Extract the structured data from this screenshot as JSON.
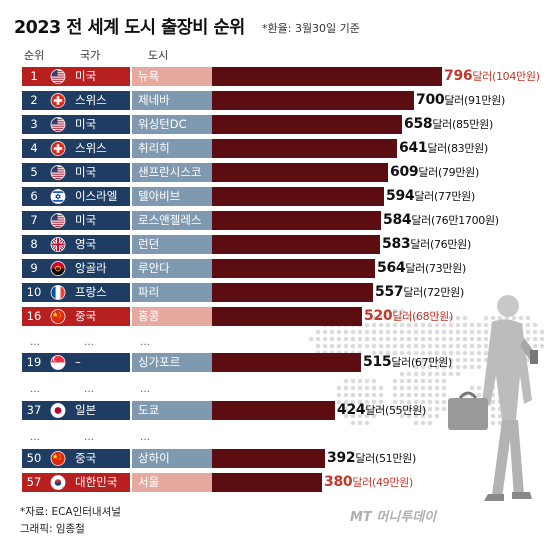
{
  "header": {
    "title": "2023 전 세계 도시 출장비 순위",
    "subtitle": "*환율: 3월30일 기준"
  },
  "columns": {
    "rank": "순위",
    "country": "국가",
    "city": "도시"
  },
  "chart_data": {
    "type": "bar",
    "orientation": "horizontal",
    "title": "2023 전 세계 도시 출장비 순위",
    "unit": "달러",
    "rows": [
      {
        "rank": "1",
        "country": "미국",
        "city": "뉴욕",
        "value": 796,
        "value_label": "796",
        "unit_label": "달러",
        "krw_label": "(104만원)",
        "flag": "usa-flag-icon",
        "highlight": true
      },
      {
        "rank": "2",
        "country": "스위스",
        "city": "제네바",
        "value": 700,
        "value_label": "700",
        "unit_label": "달러",
        "krw_label": "(91만원)",
        "flag": "switzerland-flag-icon",
        "highlight": false
      },
      {
        "rank": "3",
        "country": "미국",
        "city": "워싱턴DC",
        "value": 658,
        "value_label": "658",
        "unit_label": "달러",
        "krw_label": "(85만원)",
        "flag": "usa-flag-icon",
        "highlight": false
      },
      {
        "rank": "4",
        "country": "스위스",
        "city": "취리히",
        "value": 641,
        "value_label": "641",
        "unit_label": "달러",
        "krw_label": "(83만원)",
        "flag": "switzerland-flag-icon",
        "highlight": false
      },
      {
        "rank": "5",
        "country": "미국",
        "city": "샌프란시스코",
        "value": 609,
        "value_label": "609",
        "unit_label": "달러",
        "krw_label": "(79만원)",
        "flag": "usa-flag-icon",
        "highlight": false
      },
      {
        "rank": "6",
        "country": "이스라엘",
        "city": "텔아비브",
        "value": 594,
        "value_label": "594",
        "unit_label": "달러",
        "krw_label": "(77만원)",
        "flag": "israel-flag-icon",
        "highlight": false
      },
      {
        "rank": "7",
        "country": "미국",
        "city": "로스앤젤레스",
        "value": 584,
        "value_label": "584",
        "unit_label": "달러",
        "krw_label": "(76만1700원)",
        "flag": "usa-flag-icon",
        "highlight": false
      },
      {
        "rank": "8",
        "country": "영국",
        "city": "런던",
        "value": 583,
        "value_label": "583",
        "unit_label": "달러",
        "krw_label": "(76만원)",
        "flag": "uk-flag-icon",
        "highlight": false
      },
      {
        "rank": "9",
        "country": "앙골라",
        "city": "루안다",
        "value": 564,
        "value_label": "564",
        "unit_label": "달러",
        "krw_label": "(73만원)",
        "flag": "angola-flag-icon",
        "highlight": false
      },
      {
        "rank": "10",
        "country": "프랑스",
        "city": "파리",
        "value": 557,
        "value_label": "557",
        "unit_label": "달러",
        "krw_label": "(72만원)",
        "flag": "france-flag-icon",
        "highlight": false
      },
      {
        "rank": "16",
        "country": "중국",
        "city": "홍콩",
        "value": 520,
        "value_label": "520",
        "unit_label": "달러",
        "krw_label": "(68만원)",
        "flag": "china-flag-icon",
        "highlight": true
      },
      {
        "rank": "19",
        "country": "–",
        "city": "싱가포르",
        "value": 515,
        "value_label": "515",
        "unit_label": "달러",
        "krw_label": "(67만원)",
        "flag": "singapore-flag-icon",
        "highlight": false
      },
      {
        "rank": "37",
        "country": "일본",
        "city": "도쿄",
        "value": 424,
        "value_label": "424",
        "unit_label": "달러",
        "krw_label": "(55만원)",
        "flag": "japan-flag-icon",
        "highlight": false
      },
      {
        "rank": "50",
        "country": "중국",
        "city": "상하이",
        "value": 392,
        "value_label": "392",
        "unit_label": "달러",
        "krw_label": "(51만원)",
        "flag": "china-flag-icon",
        "highlight": false
      },
      {
        "rank": "57",
        "country": "대한민국",
        "city": "서울",
        "value": 380,
        "value_label": "380",
        "unit_label": "달러",
        "krw_label": "(49만원)",
        "flag": "korea-flag-icon",
        "highlight": true
      }
    ],
    "colors": {
      "navy": "#1f3d63",
      "steel": "#7f9ab0",
      "bar": "#5c0d12",
      "highlight": "#b82020",
      "highlight_text": "#c0392b"
    }
  },
  "gap_marker": "…",
  "footer": {
    "source": "*자료: ECA인터내셔널",
    "credit": "그래픽: 임종철",
    "logo": "MT 머니투데이"
  }
}
